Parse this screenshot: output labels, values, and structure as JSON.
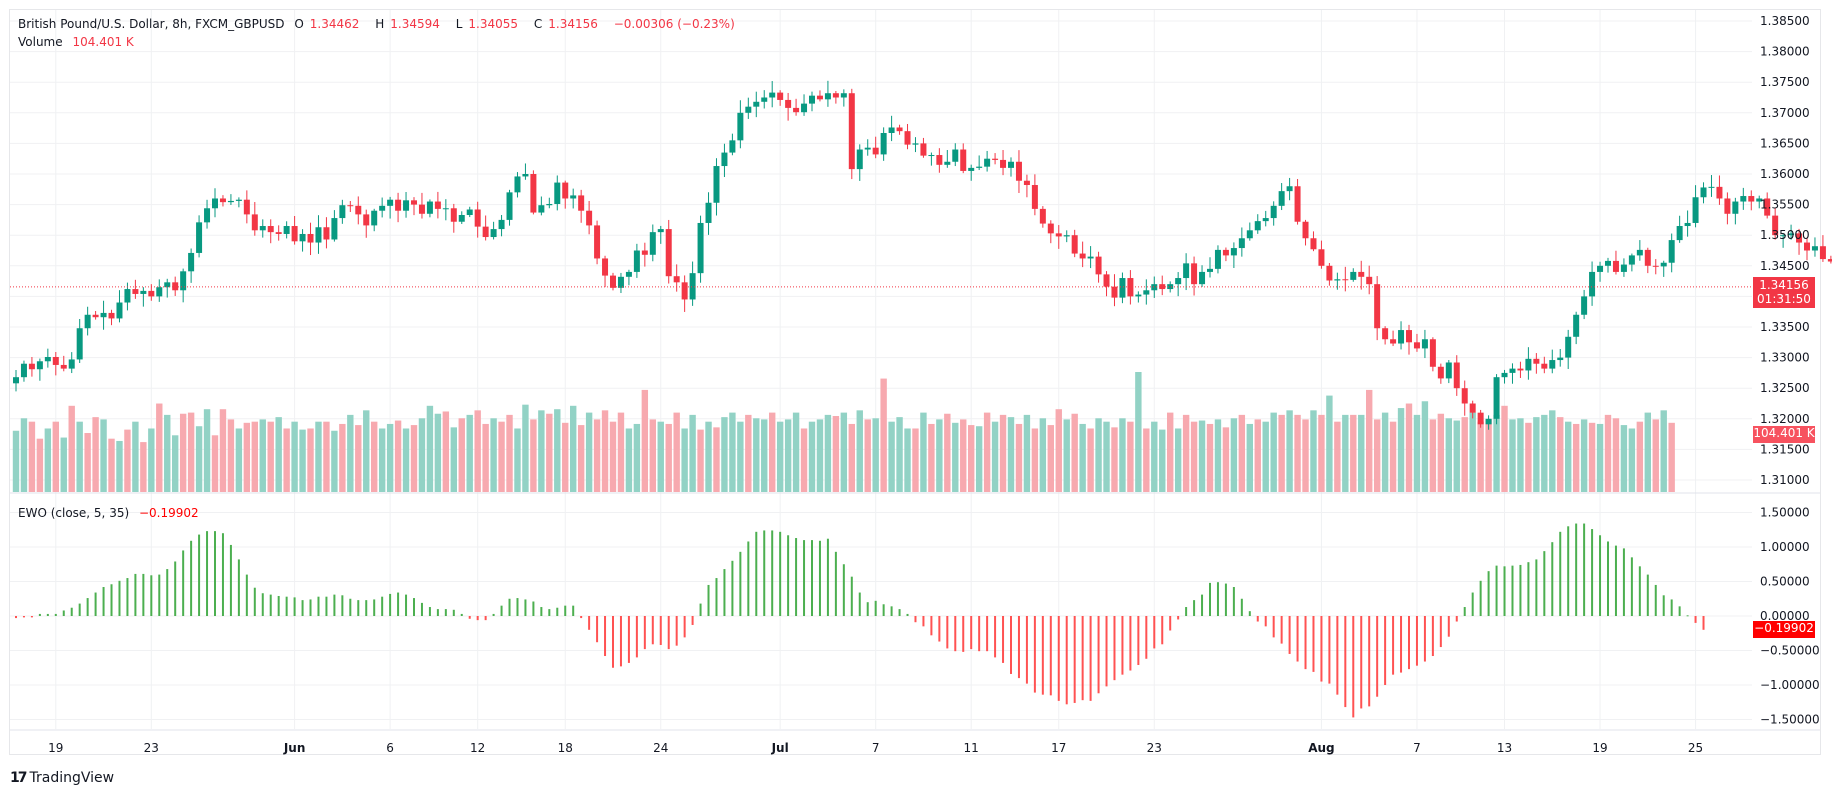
{
  "header": {
    "symbol_line": "British Pound/U.S. Dollar, 8h, FXCM_GBPUSD",
    "open_label": "O",
    "open": "1.34462",
    "high_label": "H",
    "high": "1.34594",
    "low_label": "L",
    "low": "1.34055",
    "close_label": "C",
    "close": "1.34156",
    "change": "−0.00306 (−0.23%)",
    "volume_label": "Volume",
    "volume_value": "104.401 K",
    "ewo_label": "EWO (close, 5, 35)",
    "ewo_value": "−0.19902"
  },
  "tags": {
    "last_price": "1.34156",
    "countdown": "01:31:50",
    "volume": "104.401 K",
    "ewo": "−0.19902"
  },
  "brand": {
    "logo": "17",
    "name": "TradingView"
  },
  "colors": {
    "up": "#089981",
    "down": "#f23645",
    "vol_up": "#92d2c5",
    "vol_down": "#f7a9af",
    "ewo_up": "#4caf50",
    "ewo_down": "#ff5252",
    "grid": "#f0f1f3"
  },
  "chart_data": [
    {
      "type": "candlestick",
      "title": "British Pound/U.S. Dollar, 8h, FXCM_GBPUSD",
      "ylim": [
        1.306,
        1.387
      ],
      "y_ticks": [
        "1.38500",
        "1.38000",
        "1.37500",
        "1.37000",
        "1.36500",
        "1.36000",
        "1.35500",
        "1.35000",
        "1.34500",
        "1.34000",
        "1.33500",
        "1.33000",
        "1.32500",
        "1.32000",
        "1.31500",
        "1.31000"
      ],
      "y_tick_values": [
        1.385,
        1.38,
        1.375,
        1.37,
        1.365,
        1.36,
        1.355,
        1.35,
        1.345,
        1.34,
        1.335,
        1.33,
        1.325,
        1.32,
        1.315,
        1.31
      ],
      "last_price": 1.34156,
      "x_ticks": [
        {
          "label": "19",
          "index": 5
        },
        {
          "label": "23",
          "index": 17
        },
        {
          "label": "Jun",
          "index": 35
        },
        {
          "label": "6",
          "index": 47
        },
        {
          "label": "12",
          "index": 58
        },
        {
          "label": "18",
          "index": 69
        },
        {
          "label": "24",
          "index": 81
        },
        {
          "label": "Jul",
          "index": 96
        },
        {
          "label": "7",
          "index": 108
        },
        {
          "label": "11",
          "index": 120
        },
        {
          "label": "17",
          "index": 131
        },
        {
          "label": "23",
          "index": 143
        },
        {
          "label": "Aug",
          "index": 164
        },
        {
          "label": "7",
          "index": 176
        },
        {
          "label": "13",
          "index": 187
        },
        {
          "label": "19",
          "index": 199
        },
        {
          "label": "25",
          "index": 211
        }
      ],
      "closes": [
        1.3268,
        1.329,
        1.3281,
        1.3294,
        1.3301,
        1.3288,
        1.3282,
        1.3297,
        1.3348,
        1.337,
        1.3366,
        1.3373,
        1.3364,
        1.339,
        1.3412,
        1.3404,
        1.3409,
        1.34,
        1.3415,
        1.3423,
        1.341,
        1.3441,
        1.3471,
        1.3521,
        1.3544,
        1.356,
        1.3554,
        1.3556,
        1.3558,
        1.3534,
        1.3508,
        1.3515,
        1.3505,
        1.3502,
        1.3515,
        1.349,
        1.3502,
        1.3488,
        1.3513,
        1.3493,
        1.3528,
        1.3549,
        1.3548,
        1.3534,
        1.3516,
        1.354,
        1.3548,
        1.3558,
        1.354,
        1.3557,
        1.355,
        1.3535,
        1.3555,
        1.3543,
        1.3544,
        1.3522,
        1.3533,
        1.3542,
        1.3514,
        1.3497,
        1.351,
        1.3525,
        1.357,
        1.3596,
        1.36,
        1.3537,
        1.3549,
        1.3551,
        1.3586,
        1.356,
        1.3565,
        1.354,
        1.3516,
        1.3462,
        1.3434,
        1.3414,
        1.3432,
        1.344,
        1.3475,
        1.3468,
        1.3505,
        1.351,
        1.3433,
        1.3423,
        1.3395,
        1.3438,
        1.352,
        1.3553,
        1.3613,
        1.3635,
        1.3655,
        1.37,
        1.371,
        1.3718,
        1.3725,
        1.3733,
        1.3721,
        1.3708,
        1.3701,
        1.3715,
        1.3728,
        1.3722,
        1.3732,
        1.3725,
        1.3732,
        1.3608,
        1.364,
        1.3643,
        1.3632,
        1.3667,
        1.3676,
        1.367,
        1.3648,
        1.365,
        1.363,
        1.3631,
        1.3615,
        1.362,
        1.364,
        1.3605,
        1.361,
        1.3612,
        1.3625,
        1.3623,
        1.361,
        1.362,
        1.3589,
        1.3582,
        1.3543,
        1.3519,
        1.3503,
        1.3498,
        1.35,
        1.347,
        1.3462,
        1.3465,
        1.3436,
        1.3416,
        1.3398,
        1.343,
        1.34,
        1.3403,
        1.341,
        1.342,
        1.3412,
        1.342,
        1.343,
        1.3454,
        1.342,
        1.344,
        1.3445,
        1.3476,
        1.3467,
        1.3479,
        1.3495,
        1.3508,
        1.3523,
        1.3528,
        1.3548,
        1.3572,
        1.358,
        1.3522,
        1.3495,
        1.3477,
        1.345,
        1.3426,
        1.3428,
        1.3427,
        1.344,
        1.3432,
        1.342,
        1.3348,
        1.333,
        1.3323,
        1.3345,
        1.3325,
        1.3315,
        1.333,
        1.3285,
        1.3266,
        1.3292,
        1.325,
        1.3225,
        1.321,
        1.3191,
        1.32,
        1.3268,
        1.3275,
        1.3282,
        1.3279,
        1.3298,
        1.329,
        1.3282,
        1.3296,
        1.33,
        1.3334,
        1.337,
        1.34,
        1.344,
        1.345,
        1.3458,
        1.344,
        1.3452,
        1.3467,
        1.3476,
        1.345,
        1.3449,
        1.3455,
        1.3492,
        1.3515,
        1.352,
        1.3562,
        1.3578,
        1.3579,
        1.356,
        1.3535,
        1.3555,
        1.3564,
        1.3555,
        1.356,
        1.3532,
        1.35,
        1.35,
        1.3503,
        1.3488,
        1.3475,
        1.3482,
        1.3461,
        1.3457,
        1.3452,
        1.3416
      ],
      "volume_ylim": [
        0,
        1450
      ],
      "volumes": [
        540,
        650,
        620,
        470,
        560,
        620,
        480,
        760,
        620,
        520,
        660,
        640,
        470,
        450,
        550,
        620,
        440,
        560,
        780,
        680,
        500,
        690,
        700,
        580,
        730,
        500,
        730,
        640,
        560,
        610,
        620,
        640,
        620,
        660,
        560,
        620,
        550,
        560,
        620,
        620,
        540,
        600,
        680,
        590,
        720,
        620,
        560,
        600,
        630,
        560,
        590,
        650,
        760,
        690,
        710,
        570,
        650,
        680,
        720,
        600,
        650,
        620,
        680,
        560,
        770,
        640,
        720,
        690,
        730,
        610,
        760,
        590,
        700,
        640,
        720,
        620,
        700,
        560,
        600,
        900,
        640,
        620,
        600,
        700,
        560,
        680,
        550,
        620,
        570,
        660,
        700,
        620,
        680,
        650,
        640,
        700,
        620,
        640,
        700,
        560,
        620,
        640,
        680,
        670,
        700,
        600,
        720,
        640,
        650,
        1000,
        620,
        660,
        560,
        560,
        700,
        600,
        640,
        690,
        610,
        640,
        590,
        580,
        700,
        620,
        680,
        660,
        600,
        680,
        560,
        650,
        590,
        730,
        640,
        690,
        600,
        560,
        650,
        620,
        570,
        650,
        620,
        1058,
        560,
        620,
        550,
        700,
        560,
        680,
        620,
        630,
        600,
        640,
        570,
        650,
        680,
        600,
        640,
        620,
        700,
        680,
        720,
        680,
        640,
        720,
        680,
        850,
        620,
        680,
        680,
        680,
        900,
        640,
        700,
        620,
        740,
        780,
        680,
        800,
        640,
        690,
        650,
        630,
        660,
        700,
        620,
        640,
        680,
        760,
        640,
        650,
        610,
        660,
        680,
        720,
        660,
        620,
        600,
        640,
        610,
        600,
        680,
        650,
        590,
        560,
        620,
        700,
        640,
        720,
        610
      ],
      "volume_up": [
        true,
        true,
        false,
        false,
        true,
        false,
        true,
        false,
        true,
        false,
        false,
        true,
        false,
        true,
        false,
        true,
        false,
        true,
        false,
        true,
        true,
        false,
        false,
        true,
        true,
        false,
        false,
        false,
        true,
        false,
        false,
        true,
        false,
        true,
        false,
        true,
        true,
        false,
        true,
        false,
        true,
        false,
        true,
        false,
        true,
        false,
        true,
        true,
        false,
        true,
        false,
        true,
        true,
        true,
        false,
        true,
        false,
        true,
        false,
        false,
        true,
        false,
        false,
        true,
        true,
        false,
        true,
        false,
        true,
        false,
        true,
        false,
        true,
        false,
        false,
        false,
        false,
        true,
        true,
        false,
        false,
        true,
        false,
        false,
        true,
        true,
        false,
        true,
        false,
        true,
        true,
        true,
        false,
        true,
        true,
        false,
        true,
        true,
        true,
        false,
        true,
        true,
        true,
        false,
        true,
        false,
        true,
        false,
        true,
        false,
        true,
        true,
        true,
        false,
        true,
        false,
        true,
        false,
        true,
        false,
        false,
        true,
        false,
        true,
        false,
        true,
        false,
        true,
        false,
        true,
        false,
        false,
        true,
        false,
        true,
        false,
        true,
        true,
        false,
        true,
        false,
        true,
        false,
        true,
        true,
        false,
        true,
        false,
        false,
        true,
        false,
        true,
        false,
        true,
        false,
        true,
        false,
        true,
        true,
        false,
        true,
        false,
        false,
        true,
        false,
        true,
        false,
        true,
        false,
        true,
        false,
        false,
        true,
        false,
        true,
        false,
        true,
        true,
        false,
        false,
        true,
        true,
        false,
        true,
        false,
        false,
        true,
        false,
        true,
        true,
        false,
        true,
        true,
        true,
        false,
        true,
        false,
        true,
        false,
        true,
        false,
        false,
        true,
        true,
        false,
        true,
        false,
        true,
        false,
        false,
        true,
        false
      ],
      "ewo_ylim": [
        -1.85,
        1.62
      ],
      "ewo_y_ticks": [
        "1.50000",
        "1.00000",
        "0.50000",
        "0.00000",
        "−0.50000",
        "−1.00000",
        "−1.50000"
      ],
      "ewo_y_tick_values": [
        1.5,
        1.0,
        0.5,
        0.0,
        -0.5,
        -1.0,
        -1.5
      ],
      "ewo": [
        -0.03,
        -0.02,
        -0.02,
        0.03,
        0.03,
        0.03,
        0.08,
        0.12,
        0.18,
        0.26,
        0.34,
        0.42,
        0.46,
        0.51,
        0.55,
        0.61,
        0.61,
        0.59,
        0.6,
        0.68,
        0.79,
        0.95,
        1.09,
        1.18,
        1.23,
        1.23,
        1.2,
        1.03,
        0.82,
        0.6,
        0.41,
        0.33,
        0.31,
        0.29,
        0.28,
        0.27,
        0.23,
        0.24,
        0.28,
        0.28,
        0.31,
        0.3,
        0.25,
        0.23,
        0.23,
        0.24,
        0.28,
        0.32,
        0.34,
        0.31,
        0.26,
        0.19,
        0.13,
        0.1,
        0.1,
        0.09,
        0.03,
        -0.04,
        -0.06,
        -0.06,
        0.03,
        0.15,
        0.25,
        0.26,
        0.24,
        0.21,
        0.13,
        0.1,
        0.12,
        0.15,
        0.15,
        -0.03,
        -0.2,
        -0.38,
        -0.58,
        -0.75,
        -0.73,
        -0.68,
        -0.6,
        -0.48,
        -0.41,
        -0.42,
        -0.48,
        -0.43,
        -0.31,
        -0.13,
        0.18,
        0.45,
        0.55,
        0.68,
        0.8,
        0.93,
        1.08,
        1.22,
        1.24,
        1.24,
        1.22,
        1.17,
        1.13,
        1.1,
        1.1,
        1.09,
        1.12,
        0.93,
        0.75,
        0.57,
        0.34,
        0.2,
        0.22,
        0.17,
        0.14,
        0.1,
        0.03,
        -0.09,
        -0.15,
        -0.28,
        -0.37,
        -0.47,
        -0.51,
        -0.52,
        -0.48,
        -0.51,
        -0.51,
        -0.6,
        -0.68,
        -0.84,
        -0.9,
        -0.98,
        -1.11,
        -1.14,
        -1.15,
        -1.23,
        -1.28,
        -1.26,
        -1.22,
        -1.23,
        -1.12,
        -1.02,
        -0.93,
        -0.85,
        -0.79,
        -0.71,
        -0.62,
        -0.47,
        -0.41,
        -0.21,
        -0.05,
        0.13,
        0.23,
        0.31,
        0.48,
        0.49,
        0.47,
        0.42,
        0.25,
        0.07,
        -0.08,
        -0.15,
        -0.31,
        -0.4,
        -0.55,
        -0.66,
        -0.77,
        -0.81,
        -0.95,
        -0.98,
        -1.14,
        -1.32,
        -1.47,
        -1.34,
        -1.31,
        -1.17,
        -1.0,
        -0.85,
        -0.82,
        -0.77,
        -0.72,
        -0.66,
        -0.58,
        -0.45,
        -0.3,
        -0.08,
        0.13,
        0.34,
        0.51,
        0.65,
        0.73,
        0.72,
        0.73,
        0.74,
        0.78,
        0.82,
        0.94,
        1.07,
        1.22,
        1.3,
        1.34,
        1.34,
        1.26,
        1.17,
        1.08,
        1.02,
        0.98,
        0.85,
        0.72,
        0.6,
        0.45,
        0.3,
        0.24,
        0.14,
        0.01,
        -0.1,
        -0.2
      ]
    }
  ]
}
